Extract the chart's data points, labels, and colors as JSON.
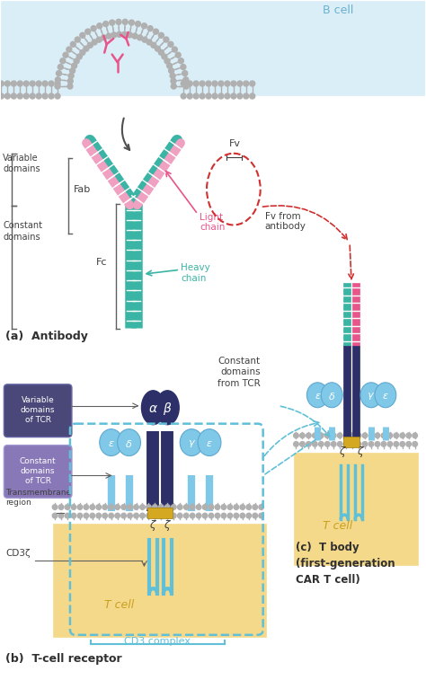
{
  "bg_color": "#ffffff",
  "bcell_bg": "#daeef8",
  "bcell_membrane_color": "#b0b0b0",
  "bcell_text": "B cell",
  "bcell_text_color": "#6ab0d0",
  "antibody_pink": "#e8558a",
  "antibody_light_pink": "#f0a0c0",
  "antibody_teal": "#3ab5a5",
  "antibody_teal_dark": "#2a9585",
  "fab_text": "Fab",
  "fc_text": "Fc",
  "fv_text": "Fv",
  "light_chain_text": "Light\nchain",
  "heavy_chain_text": "Heavy\nchain",
  "variable_domains_text": "Variable\ndomains",
  "constant_domains_text": "Constant\ndomains",
  "panel_a_label": "(a)  Antibody",
  "panel_b_label": "(b)  T-cell receptor",
  "panel_c_label": "(c)  T body\n(first-generation\nCAR T cell)",
  "tcell_bg": "#f5d98b",
  "tcell_text": "T cell",
  "tcr_var_domains_text": "Variable\ndomains\nof TCR",
  "tcr_var_bg": "#4a4878",
  "tcr_const_domains_text": "Constant\ndomains\nof TCR",
  "tcr_const_bg": "#8878b8",
  "transmembrane_text": "Transmembrane\nregion",
  "cd3z_text": "CD3ζ",
  "cd3_complex_text": "CD3 complex",
  "cd3_complex_color": "#60c0d8",
  "fv_from_antibody_text": "Fv from\nantibody",
  "constant_domains_from_tcr_text": "Constant\ndomains\nfrom TCR",
  "alpha_color": "#2d3068",
  "subunit_color": "#80c8e8",
  "zeta_color": "#60c0d8",
  "dashed_red": "#d03030",
  "dashed_teal": "#60c0d8",
  "arrow_color": "#505050"
}
